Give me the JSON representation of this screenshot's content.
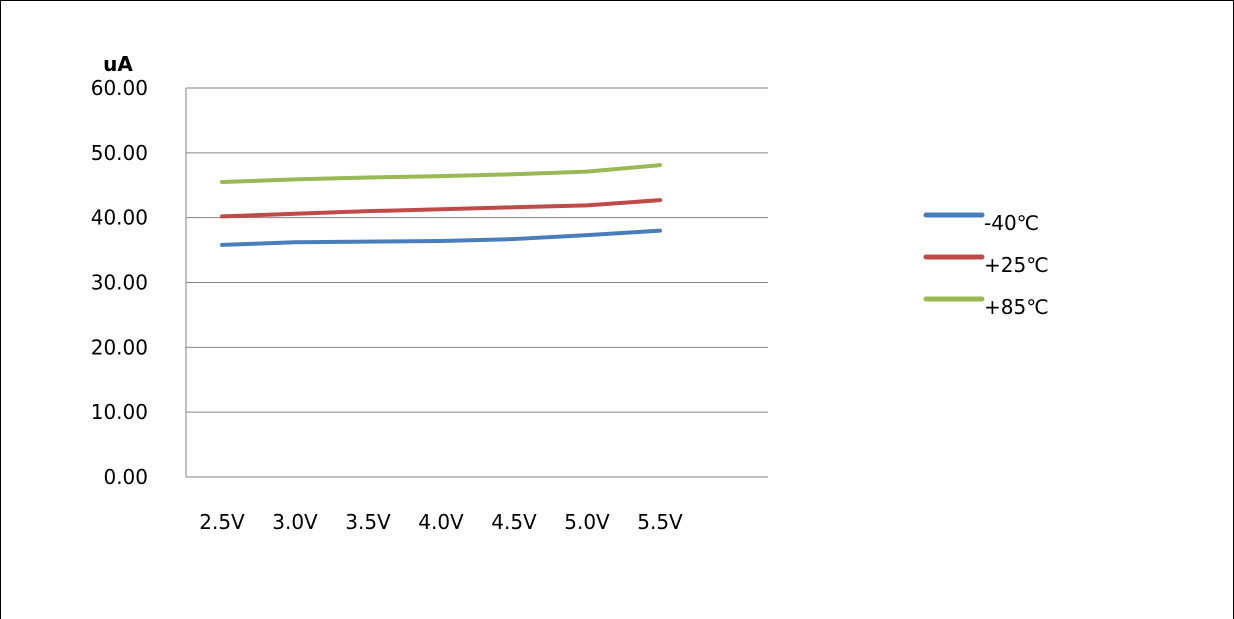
{
  "chart_data": {
    "type": "line",
    "ylabel": "uA",
    "xlabel": "",
    "title": "",
    "categories": [
      "2.5V",
      "3.0V",
      "3.5V",
      "4.0V",
      "4.5V",
      "5.0V",
      "5.5V"
    ],
    "ylim": [
      0,
      60
    ],
    "yticks": [
      "0.00",
      "10.00",
      "20.00",
      "30.00",
      "40.00",
      "50.00",
      "60.00"
    ],
    "grid": true,
    "legend_position": "right",
    "series": [
      {
        "name": "-40℃",
        "color": "#4a7ebb",
        "values": [
          35.8,
          36.2,
          36.3,
          36.4,
          36.7,
          37.3,
          38.0
        ]
      },
      {
        "name": "+25℃",
        "color": "#be4b48",
        "values": [
          40.2,
          40.6,
          41.0,
          41.3,
          41.6,
          41.9,
          42.7
        ]
      },
      {
        "name": "+85℃",
        "color": "#98b954",
        "values": [
          45.5,
          45.9,
          46.2,
          46.4,
          46.7,
          47.1,
          48.1
        ]
      }
    ]
  }
}
